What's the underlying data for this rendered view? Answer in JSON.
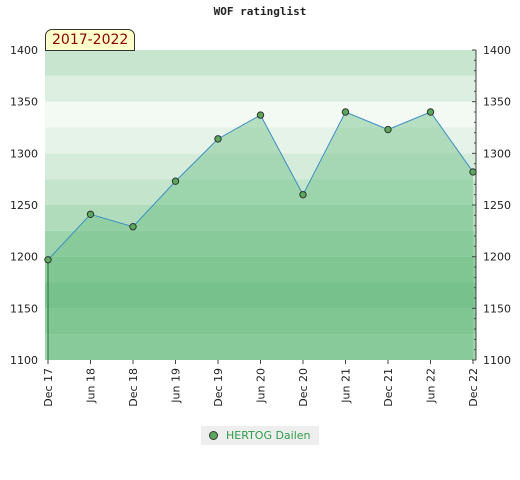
{
  "chart_data": {
    "type": "area",
    "title": "WOF ratinglist",
    "period_label": "2017-2022",
    "categories": [
      "Dec 17",
      "Jun 18",
      "Dec 18",
      "Jun 19",
      "Dec 19",
      "Jun 20",
      "Dec 20",
      "Jun 21",
      "Dec 21",
      "Jun 22",
      "Dec 22"
    ],
    "series": [
      {
        "name": "HERTOG Dailen",
        "values": [
          1197,
          1241,
          1229,
          1273,
          1314,
          1337,
          1260,
          1340,
          1323,
          1340,
          1282
        ],
        "color": "#3a8fc4",
        "marker_color": "#5aa85a"
      }
    ],
    "ylim": [
      1100,
      1400
    ],
    "yticks": [
      1100,
      1150,
      1200,
      1250,
      1300,
      1350,
      1400
    ],
    "grid": true,
    "legend": "bottom-center"
  }
}
